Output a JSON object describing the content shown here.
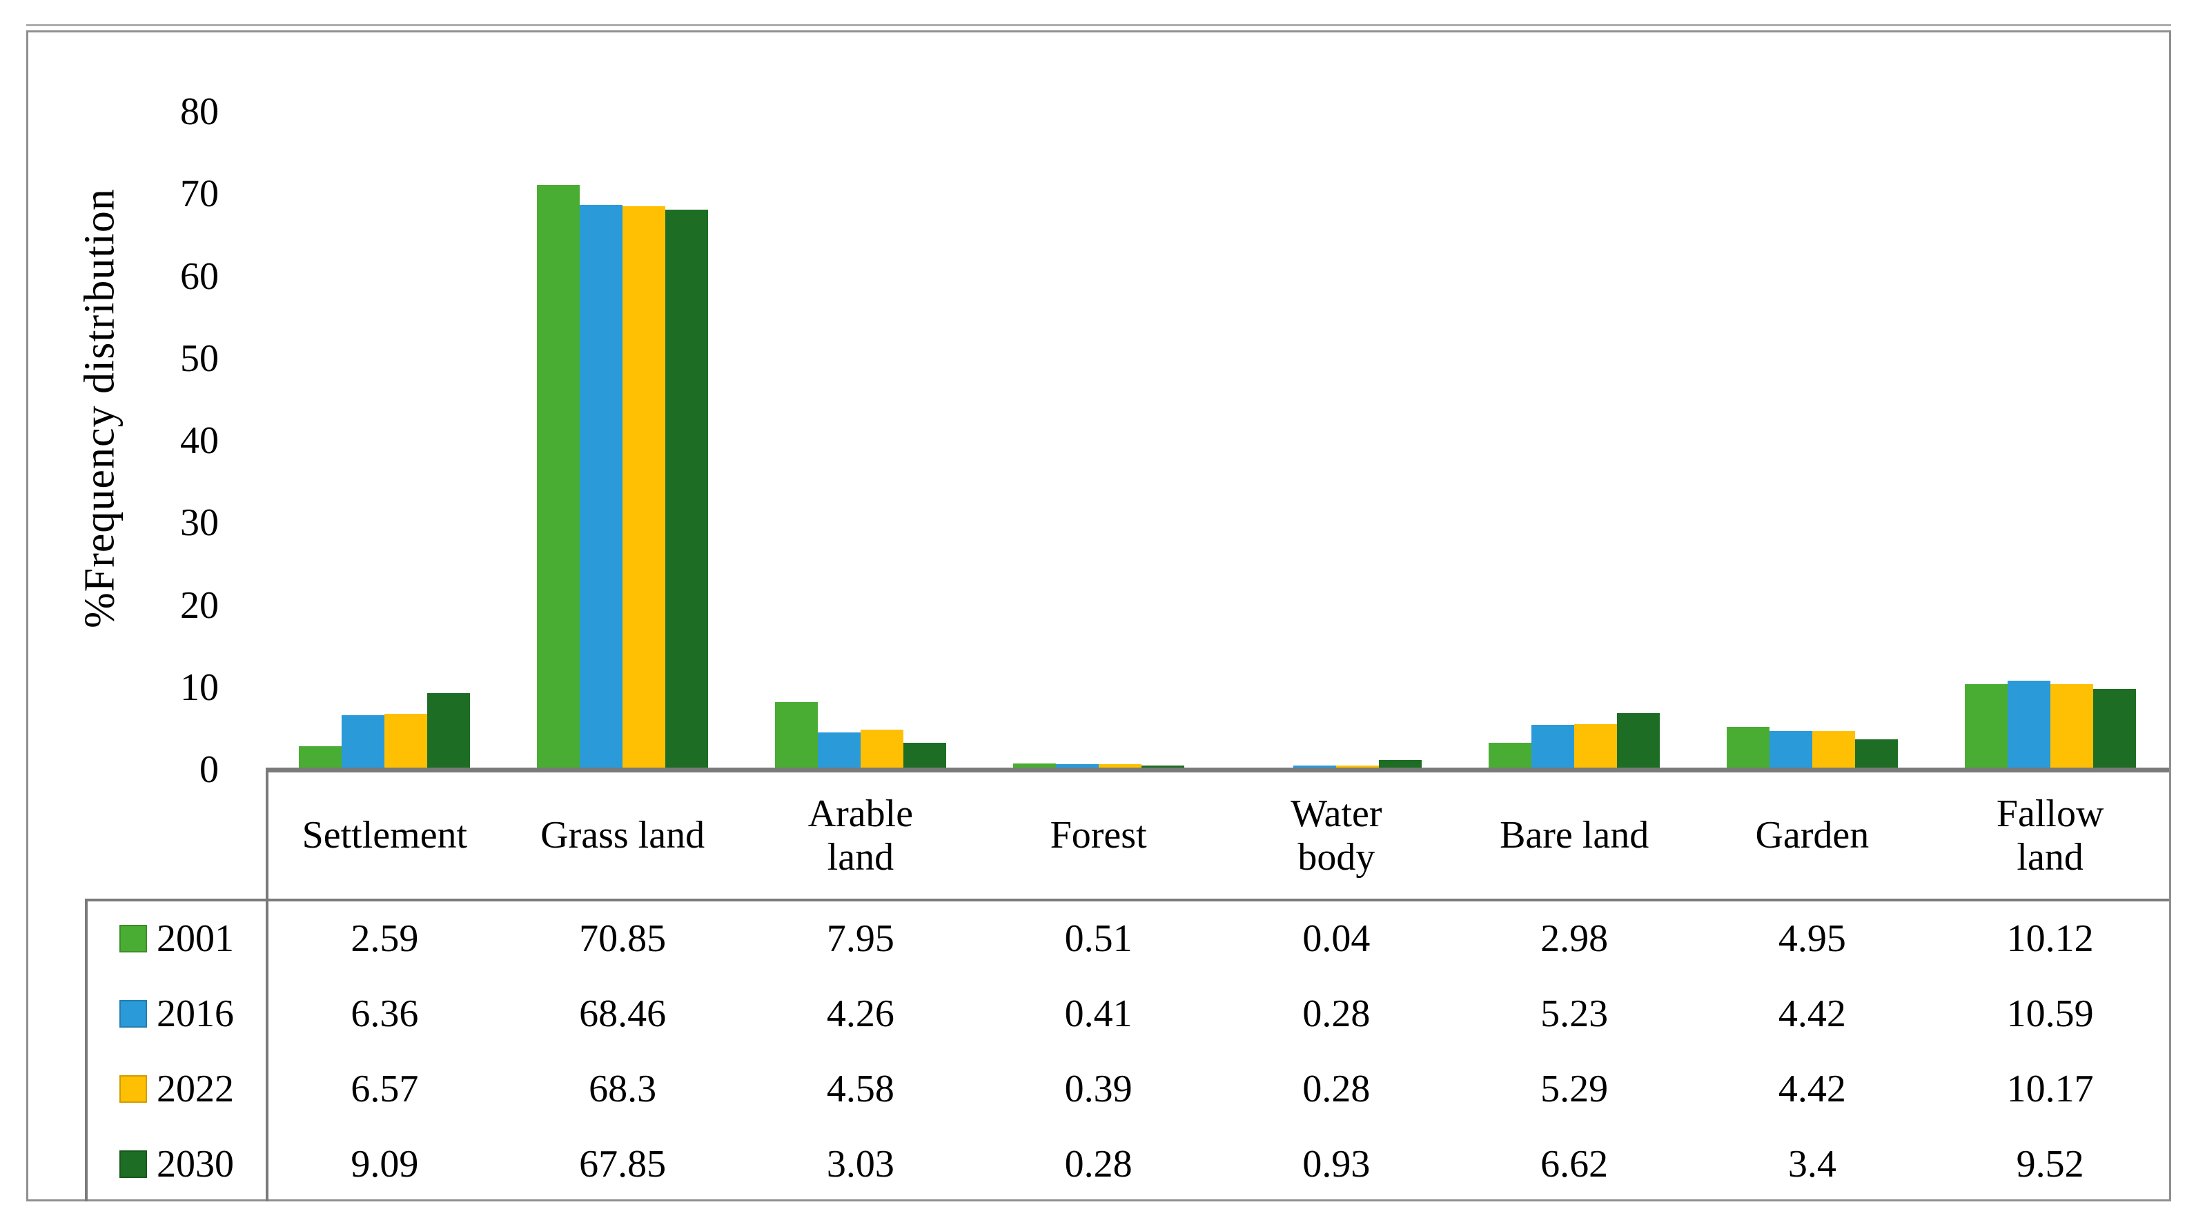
{
  "chart_data": {
    "type": "bar",
    "title": "",
    "ylabel": "%Frequency distribution",
    "ylim": [
      0,
      80
    ],
    "yticks": [
      0,
      10,
      20,
      30,
      40,
      50,
      60,
      70,
      80
    ],
    "grid": false,
    "legend_position": "left-of-table-rows",
    "categories": [
      "Settlement",
      "Grass land",
      "Arable land",
      "Forest",
      "Water body",
      "Bare land",
      "Garden",
      "Fallow land"
    ],
    "categories_display": [
      "Settlement",
      "Grass land",
      "Arable\nland",
      "Forest",
      "Water\nbody",
      "Bare land",
      "Garden",
      "Fallow\nland"
    ],
    "series": [
      {
        "name": "2001",
        "color": "#4AAD33",
        "values": [
          2.59,
          70.85,
          7.95,
          0.51,
          0.04,
          2.98,
          4.95,
          10.12
        ]
      },
      {
        "name": "2016",
        "color": "#2A9AD9",
        "values": [
          6.36,
          68.46,
          4.26,
          0.41,
          0.28,
          5.23,
          4.42,
          10.59
        ]
      },
      {
        "name": "2022",
        "color": "#FFC003",
        "values": [
          6.57,
          68.3,
          4.58,
          0.39,
          0.28,
          5.29,
          4.42,
          10.17
        ]
      },
      {
        "name": "2030",
        "color": "#1E6D24",
        "values": [
          9.09,
          67.85,
          3.03,
          0.28,
          0.93,
          6.62,
          3.4,
          9.52
        ]
      }
    ]
  }
}
